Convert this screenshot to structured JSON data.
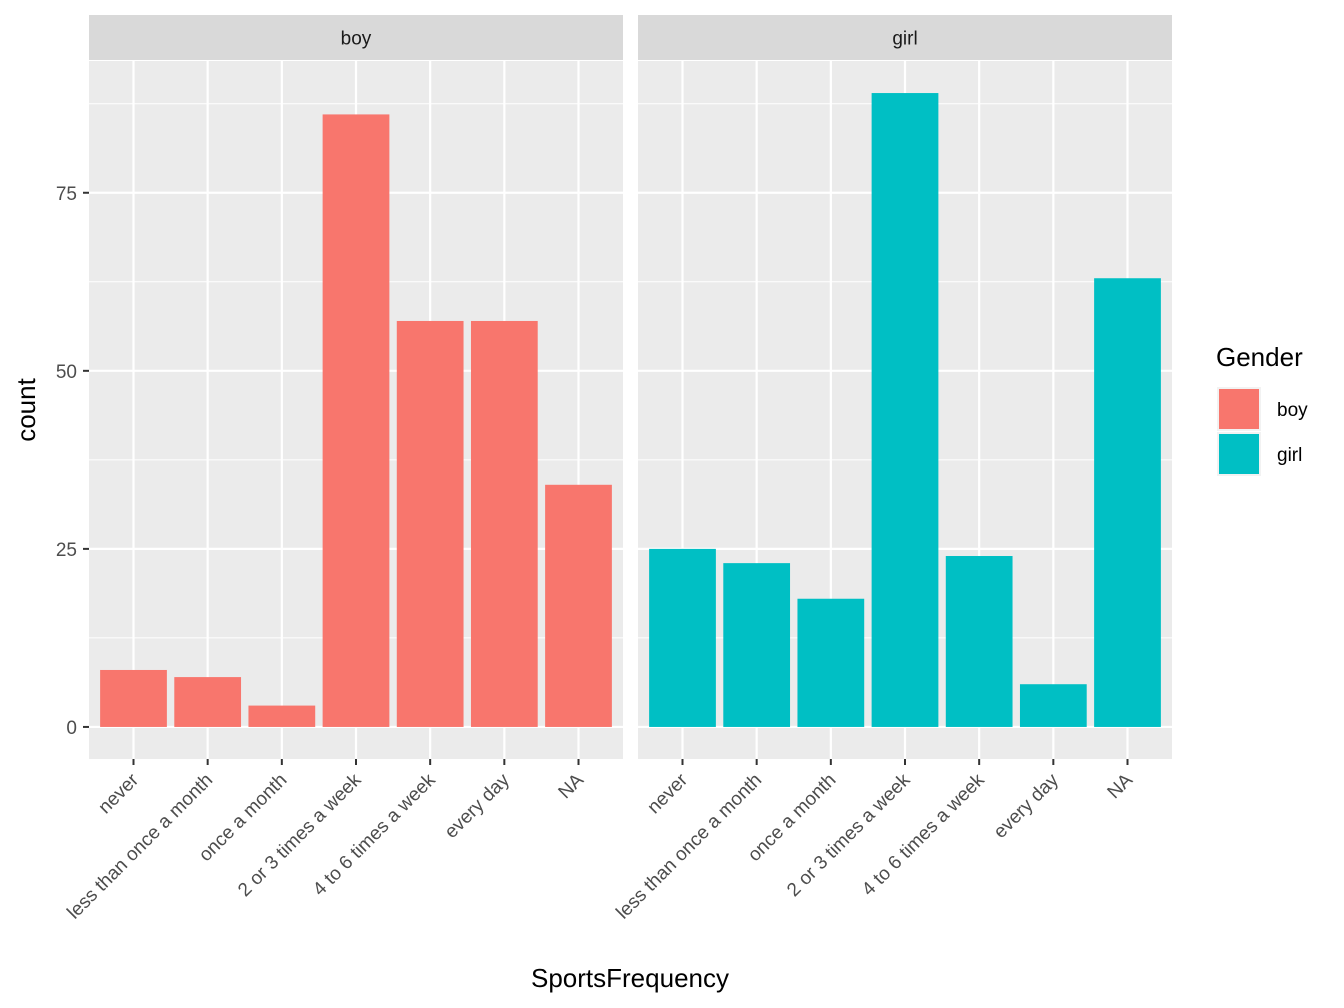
{
  "chart_data": {
    "type": "bar",
    "xlabel": "SportsFrequency",
    "ylabel": "count",
    "categories": [
      "never",
      "less than once a month",
      "once a month",
      "2 or 3 times a week",
      "4 to 6 times a week",
      "every day",
      "NA"
    ],
    "ylim": [
      -4.5,
      93.5
    ],
    "yticks": [
      0,
      25,
      50,
      75
    ],
    "grid": true,
    "legend": {
      "title": "Gender",
      "position": "right",
      "entries": [
        {
          "label": "boy",
          "color": "#F8766D"
        },
        {
          "label": "girl",
          "color": "#00BFC4"
        }
      ]
    },
    "facets": [
      {
        "label": "boy",
        "color": "#F8766D",
        "values": [
          8,
          7,
          3,
          86,
          57,
          57,
          34
        ]
      },
      {
        "label": "girl",
        "color": "#00BFC4",
        "values": [
          25,
          23,
          18,
          89,
          24,
          6,
          63
        ]
      }
    ]
  }
}
